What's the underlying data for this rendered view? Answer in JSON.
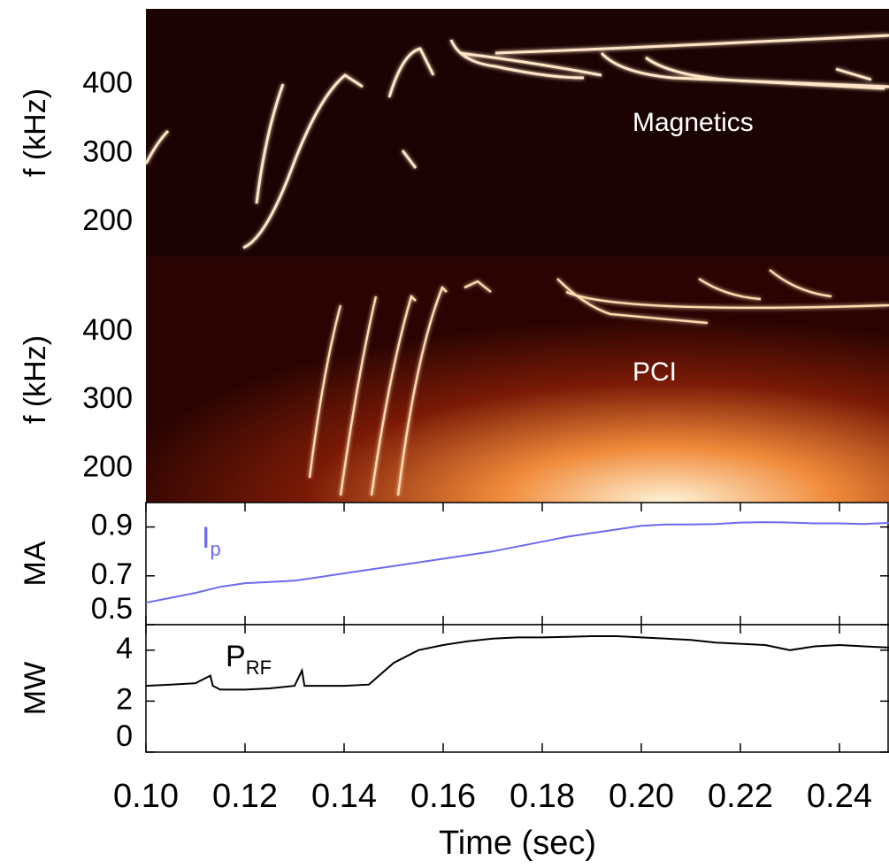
{
  "chart_data": [
    {
      "type": "spectrogram",
      "ylabel": "f (kHz)",
      "annotation": "Magnetics",
      "xlim": [
        0.1,
        0.25
      ],
      "ylim": [
        150,
        510
      ],
      "yticks": [
        200,
        300,
        400
      ]
    },
    {
      "type": "spectrogram",
      "ylabel": "f (kHz)",
      "annotation": "PCI",
      "xlim": [
        0.1,
        0.25
      ],
      "ylim": [
        150,
        510
      ],
      "yticks": [
        200,
        300,
        400
      ]
    },
    {
      "type": "line",
      "ylabel": "MA",
      "annotation": {
        "text": "I",
        "subscript": "p"
      },
      "xlim": [
        0.1,
        0.25
      ],
      "ylim": [
        0.5,
        1.0
      ],
      "yticks": [
        0.5,
        0.7,
        0.9
      ],
      "x": [
        0.1,
        0.105,
        0.11,
        0.115,
        0.12,
        0.125,
        0.13,
        0.135,
        0.14,
        0.145,
        0.15,
        0.155,
        0.16,
        0.165,
        0.17,
        0.175,
        0.18,
        0.185,
        0.19,
        0.195,
        0.2,
        0.205,
        0.21,
        0.215,
        0.22,
        0.225,
        0.23,
        0.235,
        0.24,
        0.245,
        0.25
      ],
      "series": [
        {
          "name": "Ip",
          "color": "#6a6af0",
          "values": [
            0.59,
            0.61,
            0.63,
            0.655,
            0.67,
            0.675,
            0.68,
            0.695,
            0.71,
            0.725,
            0.74,
            0.755,
            0.77,
            0.785,
            0.8,
            0.82,
            0.84,
            0.86,
            0.875,
            0.89,
            0.905,
            0.91,
            0.91,
            0.912,
            0.918,
            0.92,
            0.918,
            0.915,
            0.915,
            0.912,
            0.917
          ]
        }
      ]
    },
    {
      "type": "line",
      "ylabel": "MW",
      "annotation": {
        "text": "P",
        "subscript": "RF"
      },
      "xlabel": "Time (sec)",
      "xlim": [
        0.1,
        0.25
      ],
      "ylim": [
        0,
        5
      ],
      "yticks": [
        0,
        2,
        4
      ],
      "xticks": [
        {
          "value": 0.1,
          "label": "0.10"
        },
        0.12,
        0.14,
        0.16,
        0.18,
        {
          "value": 0.2,
          "label": "0.20"
        },
        0.22,
        0.24
      ],
      "x": [
        0.1,
        0.105,
        0.11,
        0.113,
        0.1135,
        0.115,
        0.12,
        0.125,
        0.13,
        0.1315,
        0.132,
        0.135,
        0.14,
        0.145,
        0.15,
        0.155,
        0.16,
        0.165,
        0.17,
        0.175,
        0.18,
        0.185,
        0.19,
        0.195,
        0.2,
        0.205,
        0.21,
        0.215,
        0.22,
        0.225,
        0.23,
        0.235,
        0.24,
        0.245,
        0.25
      ],
      "series": [
        {
          "name": "PRF",
          "color": "#000000",
          "values": [
            2.6,
            2.65,
            2.7,
            3.0,
            2.6,
            2.45,
            2.45,
            2.5,
            2.6,
            3.2,
            2.6,
            2.6,
            2.6,
            2.65,
            3.5,
            4.0,
            4.2,
            4.35,
            4.45,
            4.5,
            4.5,
            4.52,
            4.55,
            4.55,
            4.5,
            4.45,
            4.4,
            4.3,
            4.25,
            4.2,
            4.0,
            4.15,
            4.2,
            4.15,
            4.1
          ]
        }
      ]
    }
  ]
}
